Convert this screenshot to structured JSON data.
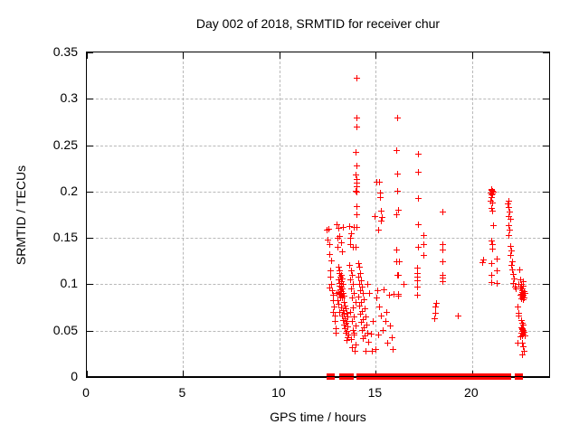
{
  "window": {
    "background": "#ffffff"
  },
  "chart_data": {
    "type": "scatter",
    "title": "Day 002 of 2018, SRMTID for receiver chur",
    "xlabel": "GPS time / hours",
    "ylabel": "SRMTID / TECUs",
    "xlim": [
      0,
      24
    ],
    "ylim": [
      0,
      0.35
    ],
    "x_ticks": [
      0,
      5,
      10,
      15,
      20
    ],
    "x_tick_labels": [
      "0",
      "5",
      "10",
      "15",
      "20"
    ],
    "y_ticks": [
      0,
      0.05,
      0.1,
      0.15,
      0.2,
      0.25,
      0.3,
      0.35
    ],
    "y_tick_labels": [
      "0",
      "0.05",
      "0.1",
      "0.15",
      "0.2",
      "0.25",
      "0.3",
      "0.35"
    ],
    "grid": "dashed-at-major-ticks",
    "legend": "none",
    "marker": "plus",
    "marker_color": "#ff0000",
    "grid_color": "#b8b8b8",
    "axis_color": "#000000",
    "points": [
      [
        12.45,
        0.158
      ],
      [
        12.55,
        0.159
      ],
      [
        12.5,
        0.148
      ],
      [
        12.6,
        0.143
      ],
      [
        12.62,
        0.132
      ],
      [
        12.7,
        0.125
      ],
      [
        12.65,
        0.108
      ],
      [
        12.72,
        0.1
      ],
      [
        12.75,
        0.093
      ],
      [
        12.8,
        0.088
      ],
      [
        12.78,
        0.082
      ],
      [
        12.85,
        0.076
      ],
      [
        12.82,
        0.07
      ],
      [
        12.9,
        0.066
      ],
      [
        12.88,
        0.06
      ],
      [
        12.95,
        0.052
      ],
      [
        12.92,
        0.047
      ],
      [
        12.98,
        0.09
      ],
      [
        12.68,
        0.115
      ],
      [
        12.6,
        0.096
      ],
      [
        13.0,
        0.164
      ],
      [
        13.1,
        0.16
      ],
      [
        13.05,
        0.15
      ],
      [
        13.15,
        0.152
      ],
      [
        13.2,
        0.145
      ],
      [
        13.05,
        0.14
      ],
      [
        13.3,
        0.161
      ],
      [
        13.25,
        0.135
      ],
      [
        13.1,
        0.118
      ],
      [
        13.15,
        0.115
      ],
      [
        13.12,
        0.112
      ],
      [
        13.2,
        0.11
      ],
      [
        13.18,
        0.108
      ],
      [
        13.25,
        0.106
      ],
      [
        13.1,
        0.105
      ],
      [
        13.22,
        0.103
      ],
      [
        13.15,
        0.101
      ],
      [
        13.3,
        0.1
      ],
      [
        13.12,
        0.098
      ],
      [
        13.2,
        0.097
      ],
      [
        13.28,
        0.095
      ],
      [
        13.17,
        0.094
      ],
      [
        13.24,
        0.092
      ],
      [
        13.1,
        0.091
      ],
      [
        13.3,
        0.09
      ],
      [
        13.15,
        0.089
      ],
      [
        13.22,
        0.088
      ],
      [
        13.35,
        0.087
      ],
      [
        13.18,
        0.086
      ],
      [
        13.28,
        0.085
      ],
      [
        13.05,
        0.082
      ],
      [
        13.35,
        0.08
      ],
      [
        13.1,
        0.078
      ],
      [
        13.4,
        0.077
      ],
      [
        13.2,
        0.075
      ],
      [
        13.45,
        0.074
      ],
      [
        13.3,
        0.072
      ],
      [
        13.15,
        0.07
      ],
      [
        13.5,
        0.069
      ],
      [
        13.35,
        0.068
      ],
      [
        13.25,
        0.066
      ],
      [
        13.55,
        0.065
      ],
      [
        13.4,
        0.063
      ],
      [
        13.3,
        0.061
      ],
      [
        13.5,
        0.06
      ],
      [
        13.45,
        0.058
      ],
      [
        13.35,
        0.056
      ],
      [
        13.55,
        0.054
      ],
      [
        13.4,
        0.052
      ],
      [
        13.5,
        0.049
      ],
      [
        13.45,
        0.047
      ],
      [
        13.6,
        0.045
      ],
      [
        13.55,
        0.042
      ],
      [
        13.5,
        0.039
      ],
      [
        13.65,
        0.162
      ],
      [
        13.75,
        0.155
      ],
      [
        13.7,
        0.15
      ],
      [
        13.9,
        0.161
      ],
      [
        13.85,
        0.14
      ],
      [
        13.95,
        0.14
      ],
      [
        13.7,
        0.143
      ],
      [
        13.65,
        0.12
      ],
      [
        13.75,
        0.115
      ],
      [
        13.8,
        0.11
      ],
      [
        13.7,
        0.105
      ],
      [
        13.85,
        0.1
      ],
      [
        13.75,
        0.095
      ],
      [
        13.9,
        0.09
      ],
      [
        13.8,
        0.085
      ],
      [
        13.95,
        0.08
      ],
      [
        13.85,
        0.075
      ],
      [
        13.7,
        0.07
      ],
      [
        13.9,
        0.065
      ],
      [
        13.8,
        0.06
      ],
      [
        13.95,
        0.055
      ],
      [
        13.85,
        0.05
      ],
      [
        13.9,
        0.045
      ],
      [
        13.75,
        0.04
      ],
      [
        13.95,
        0.035
      ],
      [
        13.88,
        0.047
      ],
      [
        13.92,
        0.028
      ],
      [
        13.8,
        0.032
      ],
      [
        14.0,
        0.322
      ],
      [
        14.0,
        0.279
      ],
      [
        14.0,
        0.27
      ],
      [
        13.99,
        0.242
      ],
      [
        14.0,
        0.228
      ],
      [
        13.99,
        0.218
      ],
      [
        14.01,
        0.213
      ],
      [
        14.0,
        0.209
      ],
      [
        14.0,
        0.205
      ],
      [
        13.98,
        0.2
      ],
      [
        14.0,
        0.199
      ],
      [
        14.0,
        0.184
      ],
      [
        14.02,
        0.175
      ],
      [
        14.0,
        0.161
      ],
      [
        14.1,
        0.122
      ],
      [
        14.15,
        0.118
      ],
      [
        14.2,
        0.112
      ],
      [
        14.1,
        0.108
      ],
      [
        14.25,
        0.104
      ],
      [
        14.15,
        0.1
      ],
      [
        14.3,
        0.097
      ],
      [
        14.2,
        0.093
      ],
      [
        14.35,
        0.09
      ],
      [
        14.1,
        0.086
      ],
      [
        14.4,
        0.083
      ],
      [
        14.25,
        0.08
      ],
      [
        14.15,
        0.077
      ],
      [
        14.45,
        0.074
      ],
      [
        14.3,
        0.071
      ],
      [
        14.2,
        0.068
      ],
      [
        14.5,
        0.065
      ],
      [
        14.35,
        0.062
      ],
      [
        14.25,
        0.059
      ],
      [
        14.55,
        0.056
      ],
      [
        14.4,
        0.053
      ],
      [
        14.3,
        0.05
      ],
      [
        14.6,
        0.047
      ],
      [
        14.45,
        0.044
      ],
      [
        14.35,
        0.041
      ],
      [
        14.65,
        0.038
      ],
      [
        14.8,
        0.028
      ],
      [
        14.5,
        0.028
      ],
      [
        14.75,
        0.046
      ],
      [
        14.85,
        0.06
      ],
      [
        14.7,
        0.09
      ],
      [
        14.6,
        0.1
      ],
      [
        14.95,
        0.173
      ],
      [
        15.05,
        0.21
      ],
      [
        15.2,
        0.21
      ],
      [
        15.25,
        0.198
      ],
      [
        15.22,
        0.194
      ],
      [
        15.3,
        0.179
      ],
      [
        15.32,
        0.172
      ],
      [
        15.15,
        0.158
      ],
      [
        15.28,
        0.168
      ],
      [
        15.05,
        0.085
      ],
      [
        15.1,
        0.093
      ],
      [
        15.2,
        0.076
      ],
      [
        15.3,
        0.066
      ],
      [
        15.5,
        0.06
      ],
      [
        15.15,
        0.045
      ],
      [
        15.6,
        0.037
      ],
      [
        15.9,
        0.03
      ],
      [
        15.0,
        0.03
      ],
      [
        15.4,
        0.05
      ],
      [
        15.7,
        0.088
      ],
      [
        15.95,
        0.089
      ],
      [
        15.45,
        0.094
      ],
      [
        15.55,
        0.07
      ],
      [
        15.75,
        0.055
      ],
      [
        15.85,
        0.042
      ],
      [
        16.12,
        0.279
      ],
      [
        16.1,
        0.244
      ],
      [
        16.15,
        0.219
      ],
      [
        16.15,
        0.2
      ],
      [
        16.17,
        0.18
      ],
      [
        16.1,
        0.175
      ],
      [
        16.1,
        0.137
      ],
      [
        16.1,
        0.124
      ],
      [
        16.25,
        0.124
      ],
      [
        16.12,
        0.11
      ],
      [
        16.16,
        0.11
      ],
      [
        16.2,
        0.089
      ],
      [
        16.16,
        0.087
      ],
      [
        16.47,
        0.1
      ],
      [
        17.2,
        0.24
      ],
      [
        17.2,
        0.221
      ],
      [
        17.2,
        0.193
      ],
      [
        17.2,
        0.164
      ],
      [
        17.2,
        0.14
      ],
      [
        17.15,
        0.117
      ],
      [
        17.15,
        0.112
      ],
      [
        17.15,
        0.108
      ],
      [
        17.15,
        0.104
      ],
      [
        17.15,
        0.097
      ],
      [
        17.16,
        0.088
      ],
      [
        17.5,
        0.153
      ],
      [
        17.48,
        0.143
      ],
      [
        17.5,
        0.131
      ],
      [
        18.48,
        0.178
      ],
      [
        18.5,
        0.143
      ],
      [
        18.5,
        0.137
      ],
      [
        18.47,
        0.124
      ],
      [
        18.47,
        0.11
      ],
      [
        18.47,
        0.103
      ],
      [
        18.5,
        0.107
      ],
      [
        18.15,
        0.079
      ],
      [
        18.12,
        0.076
      ],
      [
        18.1,
        0.069
      ],
      [
        18.08,
        0.063
      ],
      [
        19.27,
        0.066
      ],
      [
        20.55,
        0.123
      ],
      [
        20.6,
        0.126
      ],
      [
        21.0,
        0.202
      ],
      [
        21.05,
        0.2
      ],
      [
        21.1,
        0.199
      ],
      [
        20.95,
        0.198
      ],
      [
        21.02,
        0.196
      ],
      [
        21.07,
        0.197
      ],
      [
        21.0,
        0.194
      ],
      [
        21.05,
        0.188
      ],
      [
        21.0,
        0.182
      ],
      [
        21.05,
        0.179
      ],
      [
        21.1,
        0.163
      ],
      [
        21.0,
        0.147
      ],
      [
        21.05,
        0.143
      ],
      [
        21.08,
        0.138
      ],
      [
        21.02,
        0.122
      ],
      [
        21.3,
        0.127
      ],
      [
        21.0,
        0.11
      ],
      [
        21.3,
        0.115
      ],
      [
        21.0,
        0.102
      ],
      [
        21.3,
        0.101
      ],
      [
        20.98,
        0.19
      ],
      [
        21.03,
        0.201
      ],
      [
        21.9,
        0.19
      ],
      [
        21.85,
        0.187
      ],
      [
        21.9,
        0.183
      ],
      [
        21.95,
        0.178
      ],
      [
        21.9,
        0.173
      ],
      [
        22.0,
        0.17
      ],
      [
        21.9,
        0.163
      ],
      [
        21.95,
        0.158
      ],
      [
        21.9,
        0.153
      ],
      [
        22.0,
        0.141
      ],
      [
        22.05,
        0.136
      ],
      [
        22.0,
        0.131
      ],
      [
        22.1,
        0.124
      ],
      [
        22.05,
        0.12
      ],
      [
        22.1,
        0.116
      ],
      [
        22.15,
        0.111
      ],
      [
        22.2,
        0.106
      ],
      [
        22.15,
        0.101
      ],
      [
        22.25,
        0.097
      ],
      [
        22.3,
        0.095
      ],
      [
        22.47,
        0.116
      ],
      [
        22.45,
        0.1
      ],
      [
        22.5,
        0.097
      ],
      [
        22.55,
        0.095
      ],
      [
        22.6,
        0.093
      ],
      [
        22.62,
        0.091
      ],
      [
        22.58,
        0.089
      ],
      [
        22.65,
        0.088
      ],
      [
        22.6,
        0.086
      ],
      [
        22.55,
        0.084
      ],
      [
        22.68,
        0.083
      ],
      [
        22.62,
        0.095
      ],
      [
        22.66,
        0.098
      ],
      [
        22.7,
        0.092
      ],
      [
        22.5,
        0.088
      ],
      [
        22.72,
        0.085
      ],
      [
        22.58,
        0.1
      ],
      [
        22.64,
        0.103
      ],
      [
        22.52,
        0.105
      ],
      [
        22.75,
        0.09
      ],
      [
        22.4,
        0.076
      ],
      [
        22.45,
        0.069
      ],
      [
        22.42,
        0.066
      ],
      [
        22.55,
        0.061
      ],
      [
        22.6,
        0.058
      ],
      [
        22.65,
        0.056
      ],
      [
        22.55,
        0.053
      ],
      [
        22.6,
        0.051
      ],
      [
        22.62,
        0.049
      ],
      [
        22.58,
        0.047
      ],
      [
        22.65,
        0.046
      ],
      [
        22.6,
        0.044
      ],
      [
        22.68,
        0.05
      ],
      [
        22.63,
        0.052
      ],
      [
        22.7,
        0.048
      ],
      [
        22.4,
        0.037
      ],
      [
        22.6,
        0.037
      ],
      [
        22.65,
        0.033
      ],
      [
        22.7,
        0.028
      ],
      [
        22.62,
        0.024
      ],
      [
        22.75,
        0.044
      ],
      [
        22.5,
        0.043
      ]
    ],
    "zero_value_runs_hours": [
      [
        12.55,
        12.75
      ],
      [
        13.2,
        13.42
      ],
      [
        13.62,
        13.76
      ],
      [
        14.1,
        14.32
      ],
      [
        14.38,
        14.5
      ],
      [
        14.65,
        15.0
      ],
      [
        15.18,
        15.3
      ],
      [
        15.4,
        16.2
      ],
      [
        16.32,
        17.15
      ],
      [
        17.28,
        21.05
      ],
      [
        21.28,
        21.92
      ],
      [
        22.33,
        22.5
      ]
    ]
  }
}
